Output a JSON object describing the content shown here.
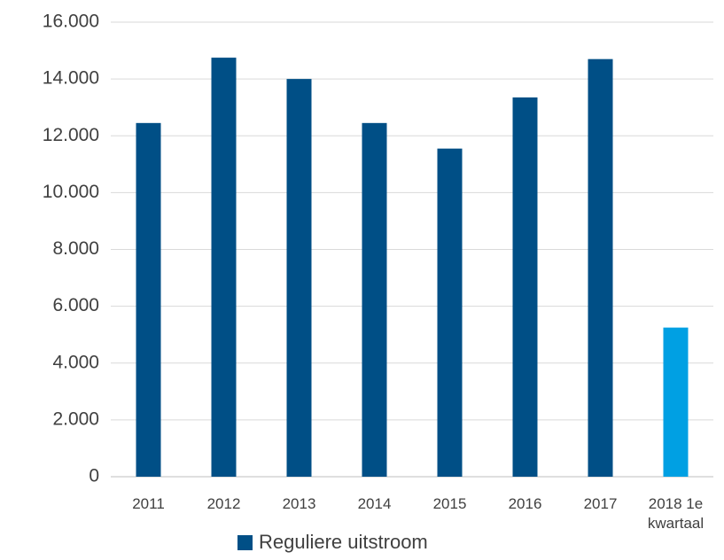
{
  "chart_data": {
    "type": "bar",
    "categories": [
      "2011",
      "2012",
      "2013",
      "2014",
      "2015",
      "2016",
      "2017",
      "2018 1e kwartaal"
    ],
    "series": [
      {
        "name": "Reguliere uitstroom",
        "color": "#004f86",
        "colors": [
          "#004f86",
          "#004f86",
          "#004f86",
          "#004f86",
          "#004f86",
          "#004f86",
          "#004f86",
          "#00a0e3"
        ],
        "values": [
          12450,
          14750,
          14000,
          12450,
          11550,
          13350,
          14700,
          5250
        ]
      }
    ],
    "ylim": [
      0,
      16000
    ],
    "yticks": [
      0,
      {
        "value": 2000,
        "label": "2.000"
      },
      {
        "value": 4000,
        "label": "4.000"
      },
      {
        "value": 6000,
        "label": "6.000"
      },
      {
        "value": 8000,
        "label": "8.000"
      },
      {
        "value": 10000,
        "label": "10.000"
      },
      {
        "value": 12000,
        "label": "12.000"
      },
      {
        "value": 14000,
        "label": "14.000"
      },
      {
        "value": 16000,
        "label": "16.000"
      }
    ],
    "grid": true,
    "legend": "bottom"
  }
}
